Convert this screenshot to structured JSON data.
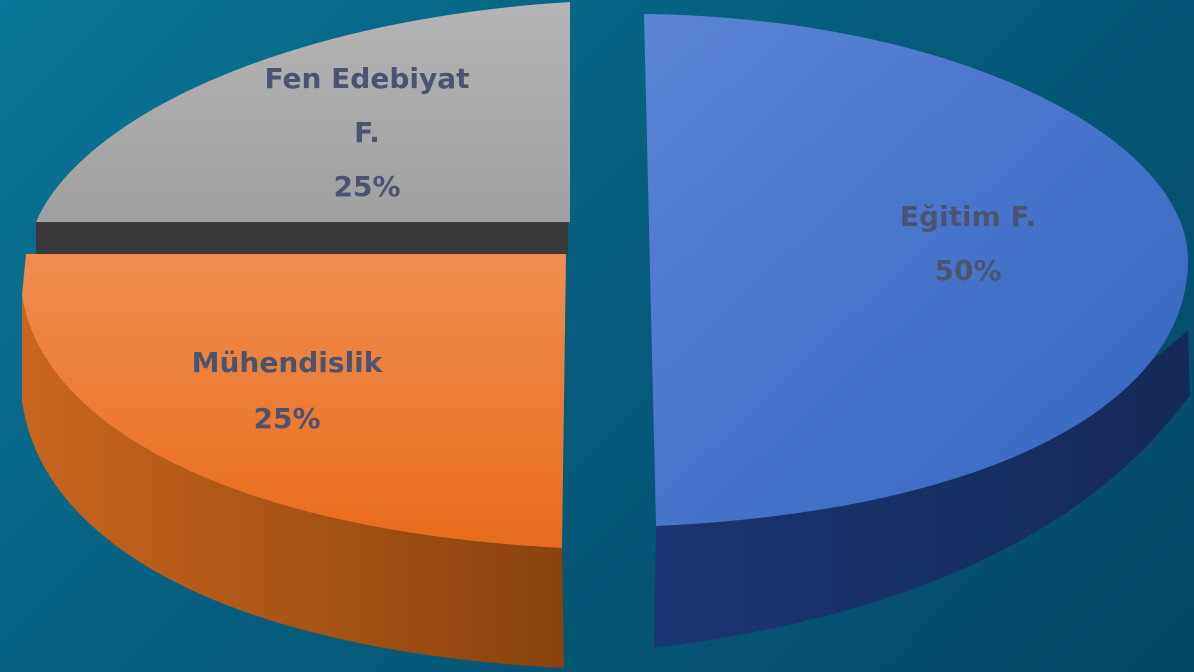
{
  "chart_data": {
    "type": "pie",
    "style": "3d-exploded",
    "slices": [
      {
        "label": "Eğitim F.",
        "percent_label": "50%",
        "value": 50,
        "color": "#4472c4"
      },
      {
        "label": "Mühendislik",
        "percent_label": "25%",
        "value": 25,
        "color": "#ed7d31"
      },
      {
        "label": "Fen Edebiyat F.",
        "label_lines": [
          "Fen Edebiyat",
          "F."
        ],
        "percent_label": "25%",
        "value": 25,
        "color": "#a5a5a5"
      }
    ],
    "legend": "none",
    "data_labels": "inside"
  }
}
